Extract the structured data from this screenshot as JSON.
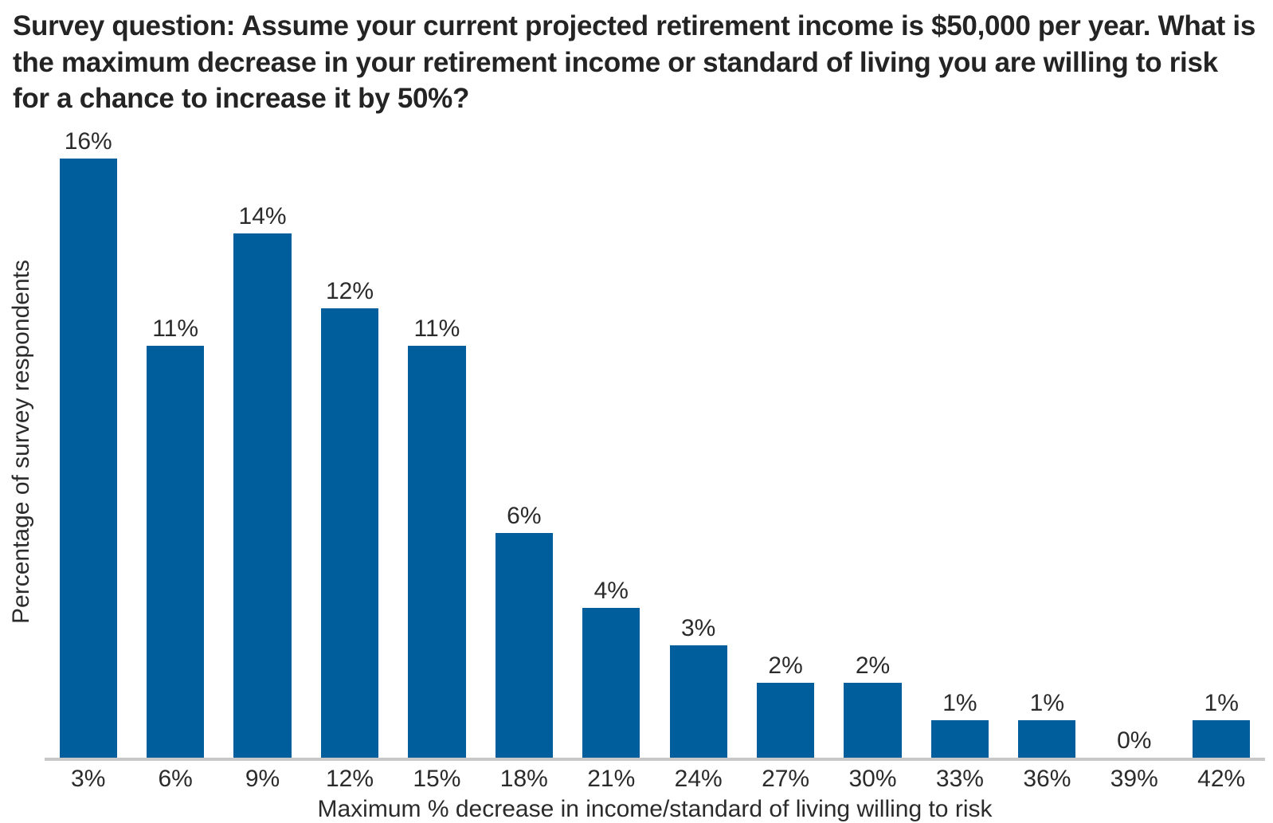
{
  "chart_data": {
    "type": "bar",
    "title": "Survey question: Assume your current projected retirement income is $50,000 per year. What is the maximum decrease in your retirement income or standard of living you are willing to risk for a chance to increase it by 50%?",
    "xlabel": "Maximum % decrease in income/standard of living willing to risk",
    "ylabel": "Percentage of survey respondents",
    "categories": [
      "3%",
      "6%",
      "9%",
      "12%",
      "15%",
      "18%",
      "21%",
      "24%",
      "27%",
      "30%",
      "33%",
      "36%",
      "39%",
      "42%"
    ],
    "values": [
      16,
      11,
      14,
      12,
      11,
      6,
      4,
      3,
      2,
      2,
      1,
      1,
      0,
      1
    ],
    "value_labels": [
      "16%",
      "11%",
      "14%",
      "12%",
      "11%",
      "6%",
      "4%",
      "3%",
      "2%",
      "2%",
      "1%",
      "1%",
      "0%",
      "1%"
    ],
    "ylim": [
      0,
      16.8
    ],
    "grid": false,
    "legend": "none",
    "y_axis_ticks": "none",
    "bar_color": "#005E9D",
    "axis_line_color": "#C8C8C8",
    "text_color": "#2B2B2B"
  }
}
